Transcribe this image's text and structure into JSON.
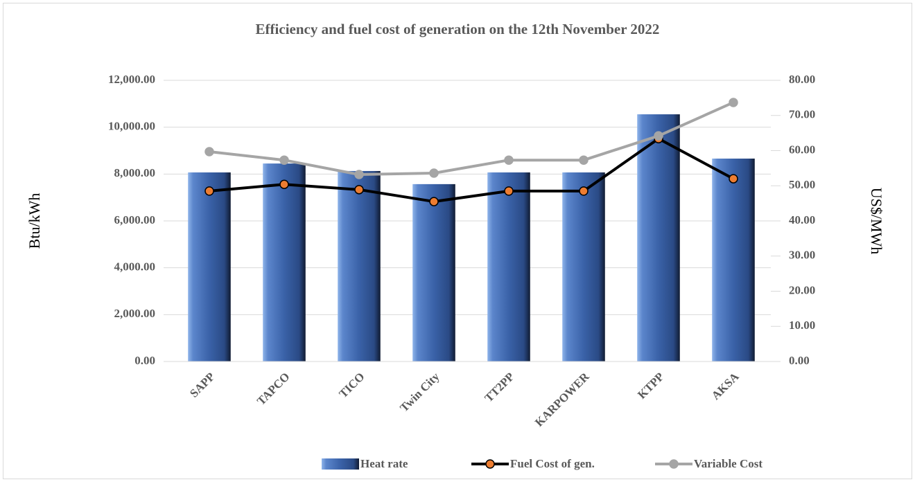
{
  "chart_data": {
    "type": "combo",
    "title": "Efficiency and fuel cost of generation on the 12th November 2022",
    "y_label": "Btu/kWh",
    "y2_label": "US$/MWh",
    "categories": [
      "SAPP",
      "TAPCO",
      "TICO",
      "Twin City",
      "TT2PP",
      "KARPOWER",
      "KTPP",
      "AKSA"
    ],
    "series": [
      {
        "name": "Heat rate",
        "type": "bar",
        "color": "#3a62a8",
        "values": [
          8070,
          8450,
          8130,
          7570,
          8070,
          8070,
          10550,
          8660
        ]
      },
      {
        "name": "Fuel Cost of gen.",
        "type": "line",
        "axis": "y2",
        "color": "#000000",
        "marker_color": "#ed7d31",
        "values": [
          48.5,
          50.4,
          48.9,
          45.5,
          48.5,
          48.5,
          63.4,
          52.0
        ]
      },
      {
        "name": "Variable Cost",
        "type": "line",
        "axis": "y2",
        "color": "#a5a5a5",
        "marker_color": "#a5a5a5",
        "values": [
          59.7,
          57.3,
          53.2,
          53.6,
          57.3,
          57.3,
          64.2,
          73.7
        ]
      }
    ],
    "ylim": [
      0,
      12000
    ],
    "yticks": [
      {
        "value": 0,
        "label": "0.00"
      },
      {
        "value": 2000,
        "label": "2,000.00"
      },
      {
        "value": 4000,
        "label": "4,000.00"
      },
      {
        "value": 6000,
        "label": "6,000.00"
      },
      {
        "value": 8000,
        "label": "8,000.00"
      },
      {
        "value": 10000,
        "label": "10,000.00"
      },
      {
        "value": 12000,
        "label": "12,000.00"
      }
    ],
    "y2lim": [
      0,
      80
    ],
    "y2ticks": [
      {
        "value": 0,
        "label": "0.00"
      },
      {
        "value": 10,
        "label": "10.00"
      },
      {
        "value": 20,
        "label": "20.00"
      },
      {
        "value": 30,
        "label": "30.00"
      },
      {
        "value": 40,
        "label": "40.00"
      },
      {
        "value": 50,
        "label": "50.00"
      },
      {
        "value": 60,
        "label": "60.00"
      },
      {
        "value": 70,
        "label": "70.00"
      },
      {
        "value": 80,
        "label": "80.00"
      }
    ],
    "grid": true,
    "legend": "bottom"
  }
}
